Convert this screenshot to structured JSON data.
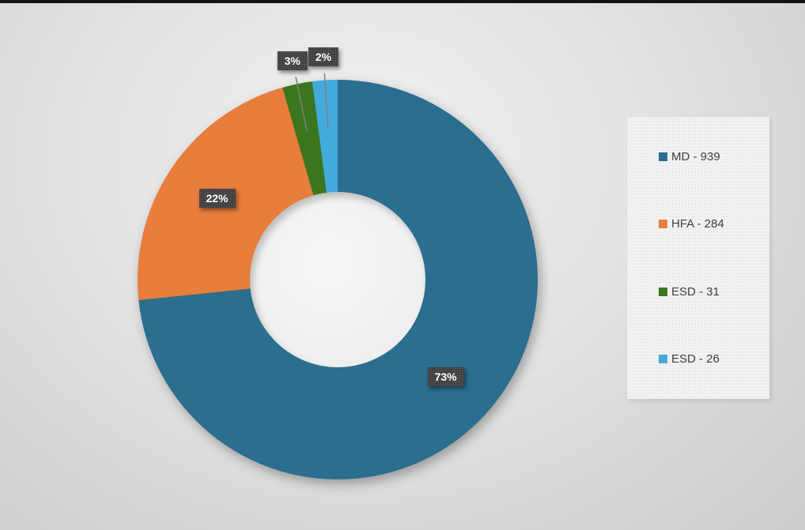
{
  "chart_data": {
    "type": "pie",
    "subtype": "donut",
    "title": "",
    "categories": [
      "MD",
      "HFA",
      "ESD",
      "ESD"
    ],
    "values": [
      939,
      284,
      31,
      26
    ],
    "percent_labels": [
      "73%",
      "22%",
      "3%",
      "2%"
    ],
    "legend_position": "right",
    "legend_entries": [
      "MD - 939",
      "HFA - 284",
      "ESD - 31",
      "ESD - 26"
    ],
    "slices": [
      {
        "label": "MD - 939",
        "value": 939,
        "pct_label": "73%",
        "color": "#2b6e8f"
      },
      {
        "label": "HFA - 284",
        "value": 284,
        "pct_label": "22%",
        "color": "#e87d3c"
      },
      {
        "label": "ESD - 31",
        "value": 31,
        "pct_label": "3%",
        "color": "#3a761d"
      },
      {
        "label": "ESD - 26",
        "value": 26,
        "pct_label": "2%",
        "color": "#42abdb"
      }
    ]
  },
  "legend": {
    "items": [
      {
        "label": "MD - 939",
        "color": "#2b6e8f"
      },
      {
        "label": "HFA - 284",
        "color": "#e87d3c"
      },
      {
        "label": "ESD - 31",
        "color": "#3a761d"
      },
      {
        "label": "ESD - 26",
        "color": "#42abdb"
      }
    ]
  }
}
